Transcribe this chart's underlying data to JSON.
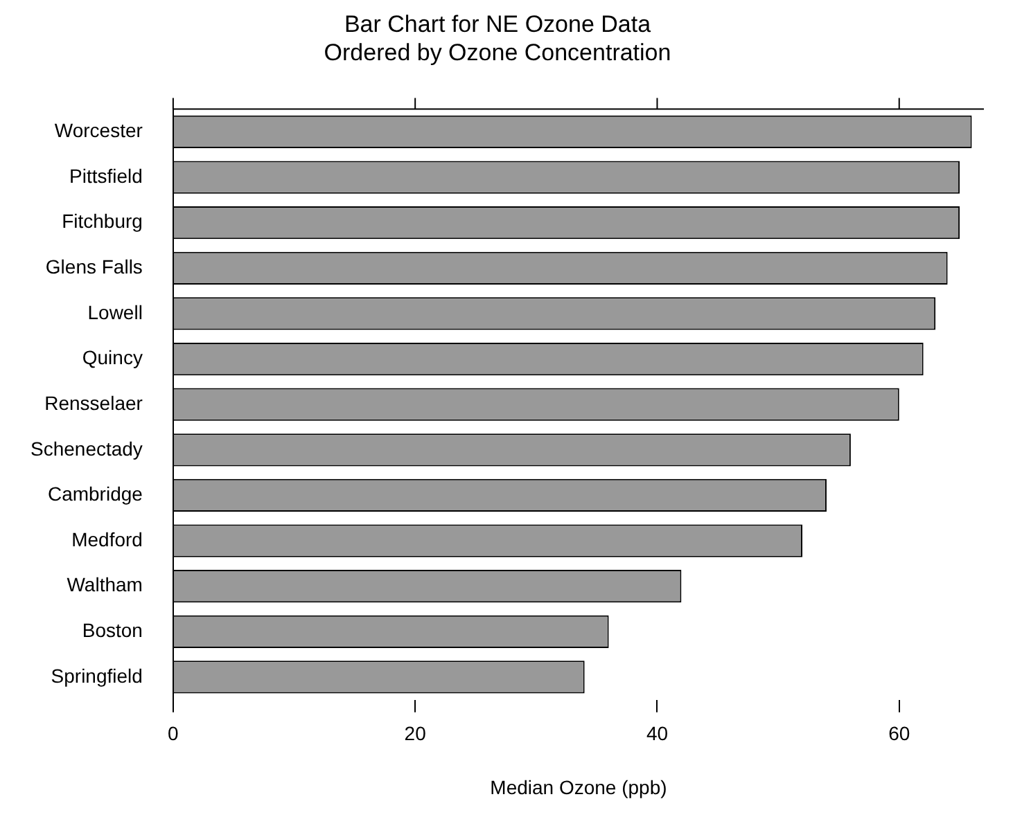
{
  "chart_data": {
    "type": "bar",
    "orientation": "horizontal",
    "title": "Bar Chart for NE Ozone Data",
    "subtitle": "Ordered by Ozone Concentration",
    "xlabel": "Median Ozone (ppb)",
    "categories": [
      "Worcester",
      "Pittsfield",
      "Fitchburg",
      "Glens Falls",
      "Lowell",
      "Quincy",
      "Rensselaer",
      "Schenectady",
      "Cambridge",
      "Medford",
      "Waltham",
      "Boston",
      "Springfield"
    ],
    "values": [
      66,
      65,
      65,
      64,
      63,
      62,
      60,
      56,
      54,
      52,
      42,
      36,
      34
    ],
    "color": "#999999",
    "xlim": [
      0,
      67
    ],
    "xticks": [
      0,
      20,
      40,
      60
    ],
    "grid": false,
    "legend": false
  }
}
